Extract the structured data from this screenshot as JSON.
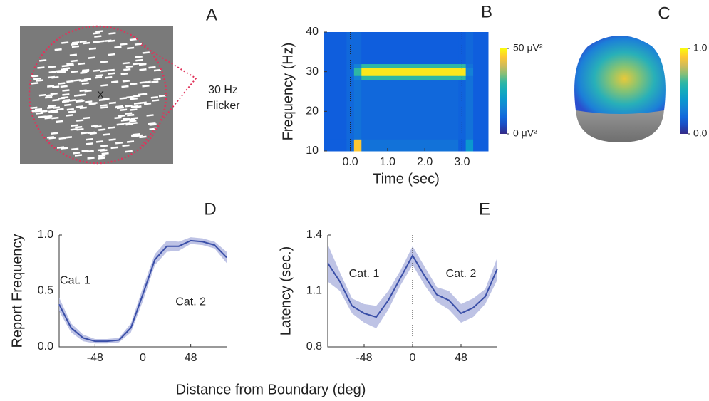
{
  "chart_data": [
    {
      "type": "image",
      "label": "A",
      "fixation": "X",
      "annotation": [
        "30 Hz",
        "Flicker"
      ]
    },
    {
      "type": "heatmap",
      "label": "B",
      "xlabel": "Time (sec)",
      "ylabel": "Frequency (Hz)",
      "xlim": [
        -0.7,
        3.7
      ],
      "ylim": [
        10,
        40
      ],
      "xticks": [
        {
          "value": 0,
          "label": "0.0"
        },
        {
          "value": 1,
          "label": "1.0"
        },
        {
          "value": 2,
          "label": "2.0"
        },
        {
          "value": 3,
          "label": "3.0"
        }
      ],
      "yticks": [
        10,
        20,
        30,
        40
      ],
      "xbins": [
        -0.7,
        -0.1,
        0.1,
        0.3,
        2.9,
        3.1,
        3.3,
        3.7
      ],
      "ybins": [
        10,
        13,
        28,
        29,
        31,
        32,
        40
      ],
      "z": [
        [
          8,
          10,
          45,
          12,
          8,
          20,
          8
        ],
        [
          8,
          10,
          12,
          10,
          9,
          12,
          8
        ],
        [
          8,
          10,
          15,
          30,
          30,
          12,
          8
        ],
        [
          8,
          10,
          30,
          48,
          48,
          15,
          8
        ],
        [
          8,
          10,
          15,
          30,
          30,
          12,
          8
        ],
        [
          8,
          10,
          10,
          8,
          8,
          10,
          8
        ]
      ],
      "clim": [
        0,
        50
      ],
      "cticks": [
        {
          "value": 50,
          "label": "50 μV²"
        },
        {
          "value": 0,
          "label": "0 μV²"
        }
      ],
      "vlines": [
        0,
        3
      ]
    },
    {
      "type": "topography",
      "label": "C",
      "clim": [
        0,
        1
      ],
      "cticks": [
        {
          "value": 1,
          "label": "1.0"
        },
        {
          "value": 0,
          "label": "0.0"
        }
      ]
    },
    {
      "type": "line",
      "label": "D",
      "ylabel": "Report Frequency",
      "xlabel": "Distance from Boundary (deg)",
      "x": [
        -84,
        -72,
        -60,
        -48,
        -36,
        -24,
        -12,
        0,
        12,
        24,
        36,
        48,
        60,
        72,
        84
      ],
      "values": [
        0.38,
        0.17,
        0.08,
        0.05,
        0.05,
        0.06,
        0.17,
        0.47,
        0.78,
        0.9,
        0.9,
        0.95,
        0.94,
        0.91,
        0.8
      ],
      "error": [
        0.06,
        0.04,
        0.03,
        0.02,
        0.02,
        0.02,
        0.04,
        0.06,
        0.05,
        0.05,
        0.04,
        0.03,
        0.03,
        0.03,
        0.05
      ],
      "color": "#3a4fa8",
      "band_color": "#b3b8e0",
      "xlim": [
        -84,
        84
      ],
      "ylim": [
        0,
        1
      ],
      "xticks": [
        -48,
        0,
        48
      ],
      "yticks": [
        {
          "value": 0,
          "label": "0.0"
        },
        {
          "value": 0.5,
          "label": "0.5"
        },
        {
          "value": 1,
          "label": "1.0"
        }
      ],
      "vlines": [
        0
      ],
      "hlines": [
        0.5
      ],
      "annotations": [
        {
          "text": "Cat. 1",
          "x": -68,
          "y": 0.59
        },
        {
          "text": "Cat. 2",
          "x": 48,
          "y": 0.4
        }
      ]
    },
    {
      "type": "line",
      "label": "E",
      "ylabel": "Latency (sec.)",
      "x": [
        -84,
        -72,
        -60,
        -48,
        -36,
        -24,
        -12,
        0,
        12,
        24,
        36,
        48,
        60,
        72,
        84
      ],
      "values": [
        1.25,
        1.15,
        1.02,
        0.98,
        0.96,
        1.05,
        1.17,
        1.29,
        1.18,
        1.08,
        1.05,
        0.98,
        1.01,
        1.07,
        1.22
      ],
      "error": [
        0.1,
        0.05,
        0.04,
        0.05,
        0.06,
        0.05,
        0.04,
        0.05,
        0.05,
        0.04,
        0.05,
        0.05,
        0.05,
        0.04,
        0.06
      ],
      "color": "#3a4fa8",
      "band_color": "#b3b8e0",
      "xlim": [
        -84,
        84
      ],
      "ylim": [
        0.8,
        1.4
      ],
      "xticks": [
        -48,
        0,
        48
      ],
      "yticks": [
        0.8,
        1.1,
        1.4
      ],
      "vlines": [
        0
      ],
      "annotations": [
        {
          "text": "Cat. 1",
          "x": -48,
          "y": 1.19
        },
        {
          "text": "Cat. 2",
          "x": 48,
          "y": 1.19
        }
      ]
    }
  ]
}
